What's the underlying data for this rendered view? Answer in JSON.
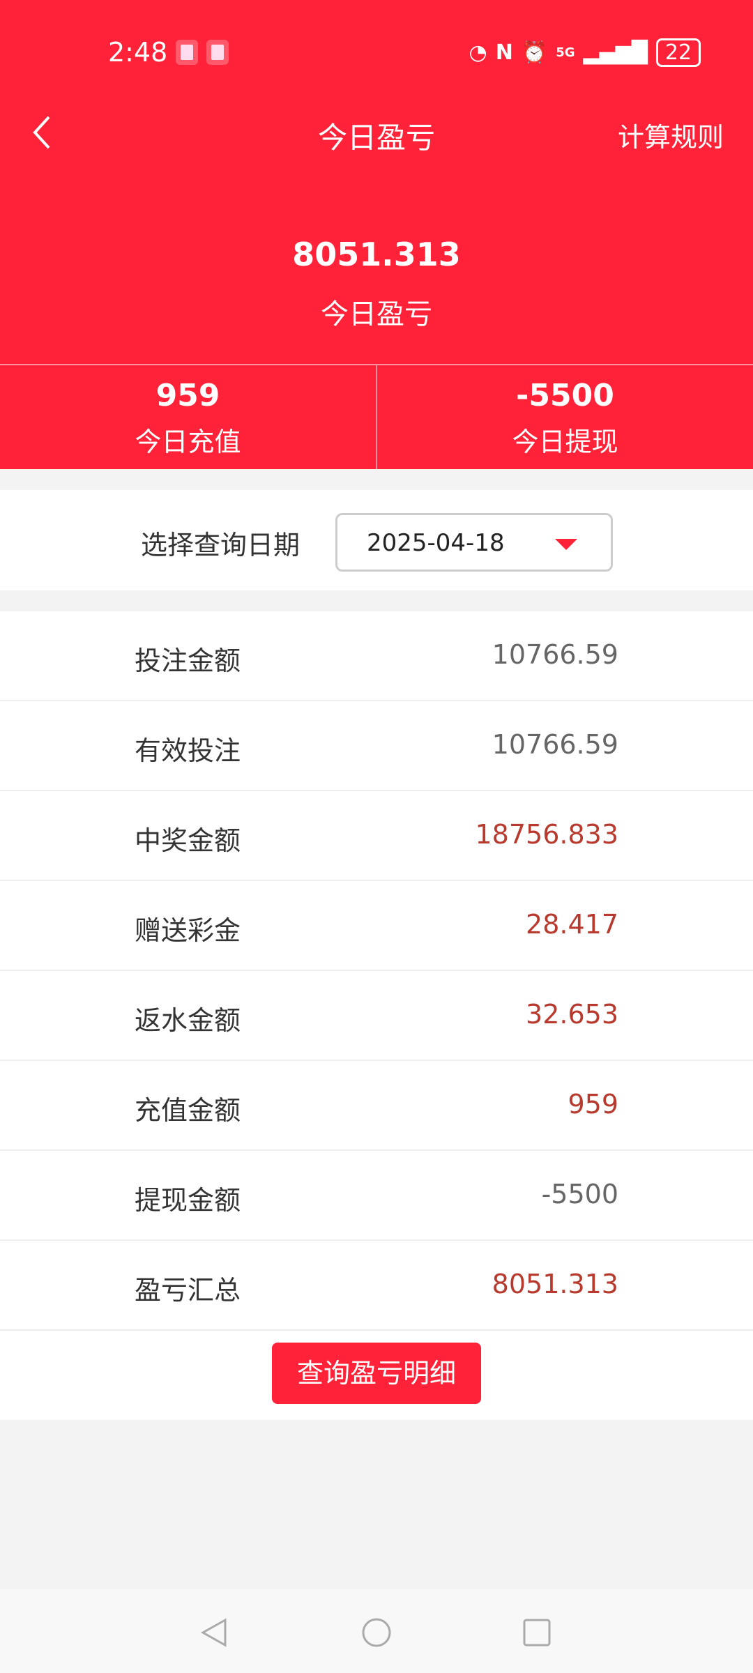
{
  "status": {
    "time": "2:48",
    "battery": "22",
    "network": "5G"
  },
  "header": {
    "title": "今日盈亏",
    "rules_label": "计算规则"
  },
  "summary": {
    "value": "8051.313",
    "label": "今日盈亏"
  },
  "stats": [
    {
      "value": "959",
      "label": "今日充值"
    },
    {
      "value": "-5500",
      "label": "今日提现"
    }
  ],
  "date_filter": {
    "label": "选择查询日期",
    "value": "2025-04-18"
  },
  "rows": [
    {
      "label": "投注金额",
      "value": "10766.59",
      "color": "#666666"
    },
    {
      "label": "有效投注",
      "value": "10766.59",
      "color": "#666666"
    },
    {
      "label": "中奖金额",
      "value": "18756.833",
      "color": "#b83a2e"
    },
    {
      "label": "赠送彩金",
      "value": "28.417",
      "color": "#b83a2e"
    },
    {
      "label": "返水金额",
      "value": "32.653",
      "color": "#b83a2e"
    },
    {
      "label": "充值金额",
      "value": "959",
      "color": "#b83a2e"
    },
    {
      "label": "提现金额",
      "value": "-5500",
      "color": "#666666"
    },
    {
      "label": "盈亏汇总",
      "value": "8051.313",
      "color": "#b83a2e"
    }
  ],
  "detail_button": "查询盈亏明细",
  "colors": {
    "accent": "#ff2238"
  }
}
